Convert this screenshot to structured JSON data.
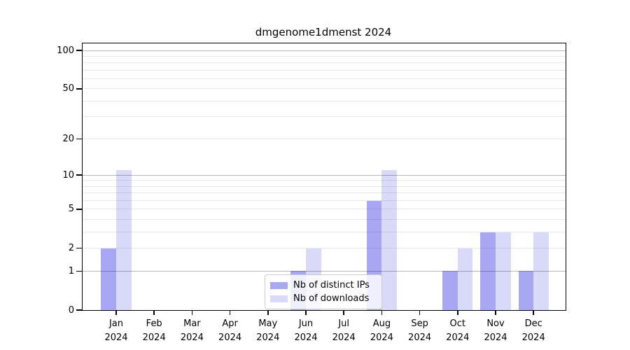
{
  "title": "dmgenome1dmenst 2024",
  "chart_data": {
    "type": "bar",
    "title": "dmgenome1dmenst 2024",
    "categories": [
      "Jan",
      "Feb",
      "Mar",
      "Apr",
      "May",
      "Jun",
      "Jul",
      "Aug",
      "Sep",
      "Oct",
      "Nov",
      "Dec"
    ],
    "year_label": "2024",
    "series": [
      {
        "name": "Nb of distinct IPs",
        "color": "#a8a8f2",
        "values": [
          2,
          0,
          0,
          0,
          0,
          1,
          0,
          6,
          0,
          1,
          3,
          1
        ]
      },
      {
        "name": "Nb of downloads",
        "color": "#d9d9f8",
        "values": [
          11,
          0,
          0,
          0,
          0,
          2,
          0,
          11,
          0,
          2,
          3,
          3
        ]
      }
    ],
    "xlabel": "",
    "ylabel": "",
    "yscale": "log1p",
    "ylim": [
      0,
      114
    ],
    "yticks": [
      0,
      1,
      2,
      5,
      10,
      20,
      50,
      100
    ],
    "major_gridlines": [
      1,
      10,
      100
    ],
    "minor_gridlines": [
      2,
      3,
      4,
      5,
      6,
      7,
      8,
      9,
      20,
      30,
      40,
      50,
      60,
      70,
      80,
      90
    ],
    "grid": true,
    "legend_position": "lower center",
    "bar_width_fraction": 0.4
  }
}
